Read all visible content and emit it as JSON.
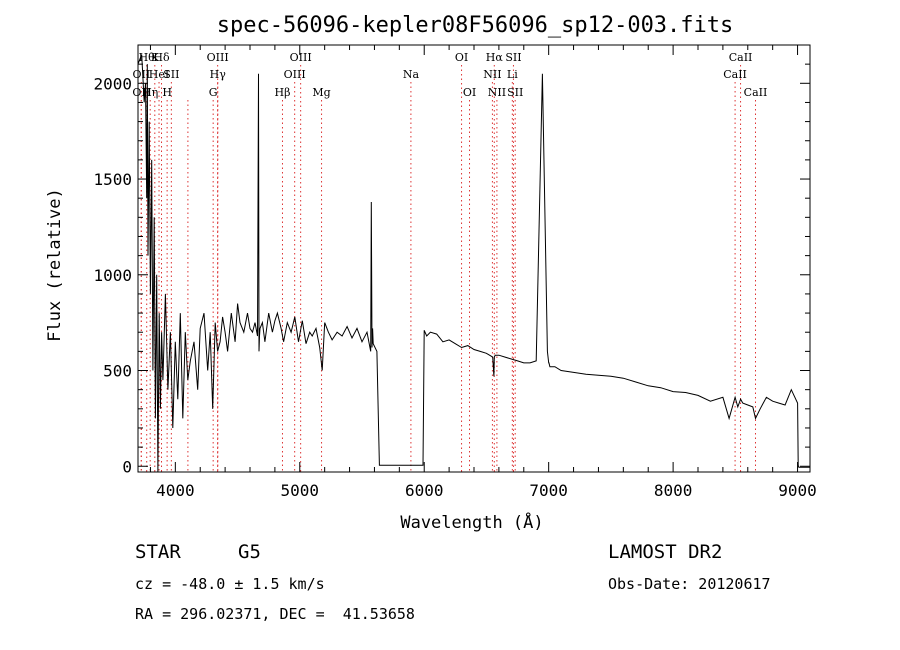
{
  "chart_data": {
    "type": "line",
    "title": "spec-56096-kepler08F56096_sp12-003.fits",
    "xlabel": "Wavelength (Å)",
    "ylabel": "Flux (relative)",
    "xlim": [
      3700,
      9100
    ],
    "ylim": [
      -30,
      2200
    ],
    "xticks": [
      4000,
      5000,
      6000,
      7000,
      8000,
      9000
    ],
    "yticks": [
      0,
      500,
      1000,
      1500,
      2000
    ],
    "grid": false,
    "series": [
      {
        "x": [
          3700,
          3730,
          3750,
          3760,
          3770,
          3775,
          3780,
          3790,
          3800,
          3810,
          3820,
          3830,
          3840,
          3850,
          3860,
          3870,
          3880,
          3890,
          3900,
          3920,
          3940,
          3960,
          3980,
          4000,
          4020,
          4040,
          4060,
          4080,
          4100,
          4120,
          4150,
          4180,
          4200,
          4230,
          4260,
          4280,
          4300,
          4320,
          4340,
          4360,
          4380,
          4400,
          4420,
          4450,
          4480,
          4500,
          4520,
          4550,
          4580,
          4600,
          4620,
          4640,
          4660,
          4668,
          4672,
          4676,
          4680,
          4700,
          4720,
          4750,
          4780,
          4800,
          4820,
          4850,
          4870,
          4900,
          4930,
          4960,
          4990,
          5020,
          5050,
          5080,
          5100,
          5130,
          5160,
          5180,
          5200,
          5230,
          5260,
          5300,
          5340,
          5380,
          5420,
          5460,
          5500,
          5540,
          5570,
          5575,
          5580,
          5585,
          5590,
          5620,
          5640,
          5650,
          5700,
          5800,
          5900,
          5990,
          6000,
          6020,
          6050,
          6100,
          6150,
          6200,
          6250,
          6300,
          6350,
          6400,
          6450,
          6500,
          6550,
          6560,
          6563,
          6570,
          6600,
          6650,
          6700,
          6750,
          6800,
          6850,
          6900,
          6950,
          6990,
          7000,
          7003,
          7006,
          7010,
          7050,
          7100,
          7200,
          7300,
          7400,
          7500,
          7600,
          7700,
          7800,
          7900,
          8000,
          8100,
          8200,
          8300,
          8400,
          8450,
          8498,
          8520,
          8542,
          8560,
          8600,
          8640,
          8662,
          8700,
          8750,
          8800,
          8850,
          8900,
          8950,
          9000,
          9005,
          9010,
          9100
        ],
        "y": [
          2100,
          2150,
          1900,
          2000,
          1400,
          2100,
          1100,
          1800,
          900,
          1600,
          500,
          1300,
          250,
          1000,
          -30,
          800,
          300,
          700,
          450,
          900,
          400,
          700,
          200,
          650,
          350,
          800,
          250,
          700,
          450,
          550,
          650,
          400,
          720,
          800,
          500,
          700,
          300,
          750,
          600,
          650,
          780,
          700,
          600,
          800,
          650,
          850,
          750,
          700,
          800,
          720,
          700,
          750,
          680,
          2050,
          600,
          680,
          720,
          750,
          650,
          800,
          700,
          760,
          800,
          720,
          650,
          750,
          700,
          780,
          650,
          760,
          640,
          700,
          680,
          720,
          620,
          500,
          750,
          700,
          660,
          700,
          680,
          730,
          670,
          720,
          650,
          700,
          600,
          1380,
          620,
          720,
          640,
          600,
          5,
          5,
          5,
          5,
          5,
          5,
          710,
          680,
          700,
          690,
          650,
          660,
          640,
          620,
          630,
          610,
          600,
          590,
          570,
          470,
          570,
          580,
          580,
          570,
          560,
          550,
          540,
          540,
          550,
          2050,
          600,
          540,
          540,
          530,
          520,
          520,
          500,
          490,
          480,
          475,
          470,
          460,
          440,
          420,
          410,
          390,
          385,
          370,
          340,
          360,
          250,
          360,
          310,
          350,
          330,
          320,
          310,
          250,
          300,
          360,
          340,
          330,
          320,
          400,
          330,
          5,
          -5,
          -5
        ]
      }
    ],
    "line_marks": [
      {
        "wl": 3770,
        "label": "Hθ",
        "row": 0
      },
      {
        "wl": 3835,
        "label": "K",
        "row": 0
      },
      {
        "wl": 3889,
        "label": "Hδ",
        "row": 0
      },
      {
        "wl": 3727,
        "label": "OII",
        "row": 1
      },
      {
        "wl": 3869,
        "label": "HeI",
        "row": 1
      },
      {
        "wl": 3968,
        "label": "SII",
        "row": 1
      },
      {
        "wl": 3726,
        "label": "OII",
        "row": 2
      },
      {
        "wl": 3798,
        "label": "Hη",
        "row": 2
      },
      {
        "wl": 3934,
        "label": "H",
        "row": 2
      },
      {
        "wl": 4101,
        "label": "",
        "row": 2
      },
      {
        "wl": 4340,
        "label": "OIII",
        "row": 0
      },
      {
        "wl": 4341,
        "label": "Hγ",
        "row": 1
      },
      {
        "wl": 4304,
        "label": "G",
        "row": 2
      },
      {
        "wl": 4861,
        "label": "Hβ",
        "row": 2
      },
      {
        "wl": 4959,
        "label": "OIII",
        "row": 1
      },
      {
        "wl": 5007,
        "label": "OIII",
        "row": 0
      },
      {
        "wl": 5175,
        "label": "Mg",
        "row": 2
      },
      {
        "wl": 5893,
        "label": "Na",
        "row": 1
      },
      {
        "wl": 6300,
        "label": "OI",
        "row": 0
      },
      {
        "wl": 6364,
        "label": "OI",
        "row": 2
      },
      {
        "wl": 6548,
        "label": "NII",
        "row": 1
      },
      {
        "wl": 6563,
        "label": "Hα",
        "row": 0
      },
      {
        "wl": 6584,
        "label": "NII",
        "row": 2
      },
      {
        "wl": 6708,
        "label": "Li",
        "row": 1
      },
      {
        "wl": 6717,
        "label": "SII",
        "row": 0
      },
      {
        "wl": 6731,
        "label": "SII",
        "row": 2
      },
      {
        "wl": 8498,
        "label": "CaII",
        "row": 1
      },
      {
        "wl": 8542,
        "label": "CaII",
        "row": 0
      },
      {
        "wl": 8662,
        "label": "CaII",
        "row": 2
      }
    ]
  },
  "info": {
    "object_type": "STAR",
    "subclass": "G5",
    "survey": "LAMOST DR2",
    "cz": "cz = -48.0 ± 1.5 km/s",
    "obs_date": "Obs-Date: 20120617",
    "coords": "RA = 296.02371, DEC =  41.53658"
  }
}
